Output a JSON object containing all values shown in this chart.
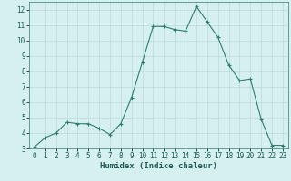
{
  "x": [
    0,
    1,
    2,
    3,
    4,
    5,
    6,
    7,
    8,
    9,
    10,
    11,
    12,
    13,
    14,
    15,
    16,
    17,
    18,
    19,
    20,
    21,
    22,
    23
  ],
  "y": [
    3.1,
    3.7,
    4.0,
    4.7,
    4.6,
    4.6,
    4.3,
    3.9,
    4.6,
    6.3,
    8.6,
    10.9,
    10.9,
    10.7,
    10.6,
    12.2,
    11.2,
    10.2,
    8.4,
    7.4,
    7.5,
    4.9,
    3.2,
    3.2
  ],
  "title": "",
  "xlabel": "Humidex (Indice chaleur)",
  "ylabel": "",
  "xlim": [
    -0.5,
    23.5
  ],
  "ylim": [
    3,
    12.5
  ],
  "yticks": [
    3,
    4,
    5,
    6,
    7,
    8,
    9,
    10,
    11,
    12
  ],
  "xticks": [
    0,
    1,
    2,
    3,
    4,
    5,
    6,
    7,
    8,
    9,
    10,
    11,
    12,
    13,
    14,
    15,
    16,
    17,
    18,
    19,
    20,
    21,
    22,
    23
  ],
  "line_color": "#2d7d6e",
  "marker": "+",
  "bg_color": "#d6f0ef",
  "grid_color": "#b8dbd8",
  "axis_label_fontsize": 6.5,
  "tick_fontsize": 5.5
}
